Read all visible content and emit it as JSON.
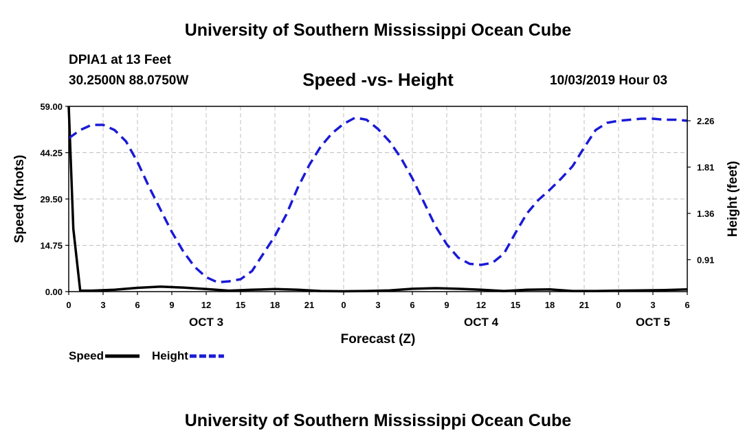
{
  "header": {
    "title_top": "University of Southern Mississippi Ocean Cube",
    "station": "DPIA1 at 13 Feet",
    "coords": "30.2500N 88.0750W",
    "chart_title": "Speed -vs- Height",
    "datetime": "10/03/2019 Hour 03"
  },
  "footer": {
    "title_bottom": "University of Southern Mississippi Ocean Cube"
  },
  "colors": {
    "speed": "#000000",
    "height": "#1a1ad6",
    "grid": "#bfbfbf"
  },
  "chart_data": {
    "type": "line",
    "title": "Speed -vs- Height",
    "xlabel": "Forecast (Z)",
    "ylabel": "Speed (Knots)",
    "y2label": "Height (feet)",
    "grid": true,
    "legend_position": "bottom-left",
    "xlim": [
      0,
      54
    ],
    "ylim": [
      0,
      59
    ],
    "y2lim": [
      0.6,
      2.4
    ],
    "x_ticks": [
      0,
      3,
      6,
      9,
      12,
      15,
      18,
      21,
      24,
      27,
      30,
      33,
      36,
      39,
      42,
      45,
      48,
      51,
      54
    ],
    "x_tick_labels": [
      "0",
      "3",
      "6",
      "9",
      "12",
      "15",
      "18",
      "21",
      "0",
      "3",
      "6",
      "9",
      "12",
      "15",
      "18",
      "21",
      "0",
      "3",
      "6"
    ],
    "y_ticks": [
      0,
      14.75,
      29.5,
      44.25,
      59
    ],
    "y_tick_labels": [
      "0.00",
      "14.75",
      "29.50",
      "44.25",
      "59.00"
    ],
    "y2_ticks": [
      0.91,
      1.36,
      1.81,
      2.26
    ],
    "y2_tick_labels": [
      "0.91",
      "1.36",
      "1.81",
      "2.26"
    ],
    "day_labels": [
      {
        "x": 12,
        "label": "OCT 3"
      },
      {
        "x": 36,
        "label": "OCT 4"
      },
      {
        "x": 51,
        "label": "OCT 5"
      }
    ],
    "series": [
      {
        "name": "Speed",
        "axis": "left",
        "style": "solid",
        "x": [
          0,
          0.4,
          1,
          2,
          4,
          6,
          8,
          10,
          12,
          14,
          16,
          18,
          20,
          22,
          24,
          26,
          28,
          30,
          32,
          34,
          36,
          38,
          40,
          42,
          44,
          46,
          48,
          50,
          52,
          54
        ],
        "values": [
          59,
          20,
          0.3,
          0.3,
          0.6,
          1.2,
          1.6,
          1.3,
          0.8,
          0.3,
          0.6,
          0.8,
          0.6,
          0.2,
          0.1,
          0.2,
          0.4,
          0.9,
          1.1,
          0.9,
          0.6,
          0.2,
          0.6,
          0.7,
          0.2,
          0.2,
          0.3,
          0.4,
          0.5,
          0.7
        ]
      },
      {
        "name": "Height",
        "axis": "right",
        "style": "dashed",
        "x": [
          0,
          1,
          2,
          3,
          4,
          5,
          6,
          7,
          8,
          9,
          10,
          11,
          12,
          13,
          14,
          15,
          16,
          17,
          18,
          19,
          20,
          21,
          22,
          23,
          24,
          25,
          26,
          27,
          28,
          29,
          30,
          31,
          32,
          33,
          34,
          35,
          36,
          37,
          38,
          39,
          40,
          41,
          42,
          43,
          44,
          45,
          46,
          47,
          48,
          49,
          50,
          51,
          52,
          53,
          54
        ],
        "values": [
          2.09,
          2.17,
          2.22,
          2.22,
          2.17,
          2.06,
          1.86,
          1.62,
          1.4,
          1.18,
          0.99,
          0.84,
          0.74,
          0.69,
          0.7,
          0.72,
          0.8,
          0.97,
          1.14,
          1.35,
          1.61,
          1.83,
          2.01,
          2.14,
          2.23,
          2.29,
          2.27,
          2.18,
          2.06,
          1.9,
          1.7,
          1.47,
          1.24,
          1.06,
          0.93,
          0.87,
          0.86,
          0.88,
          0.97,
          1.17,
          1.36,
          1.49,
          1.59,
          1.7,
          1.82,
          2.0,
          2.17,
          2.24,
          2.26,
          2.27,
          2.28,
          2.28,
          2.27,
          2.27,
          2.26
        ]
      }
    ]
  }
}
